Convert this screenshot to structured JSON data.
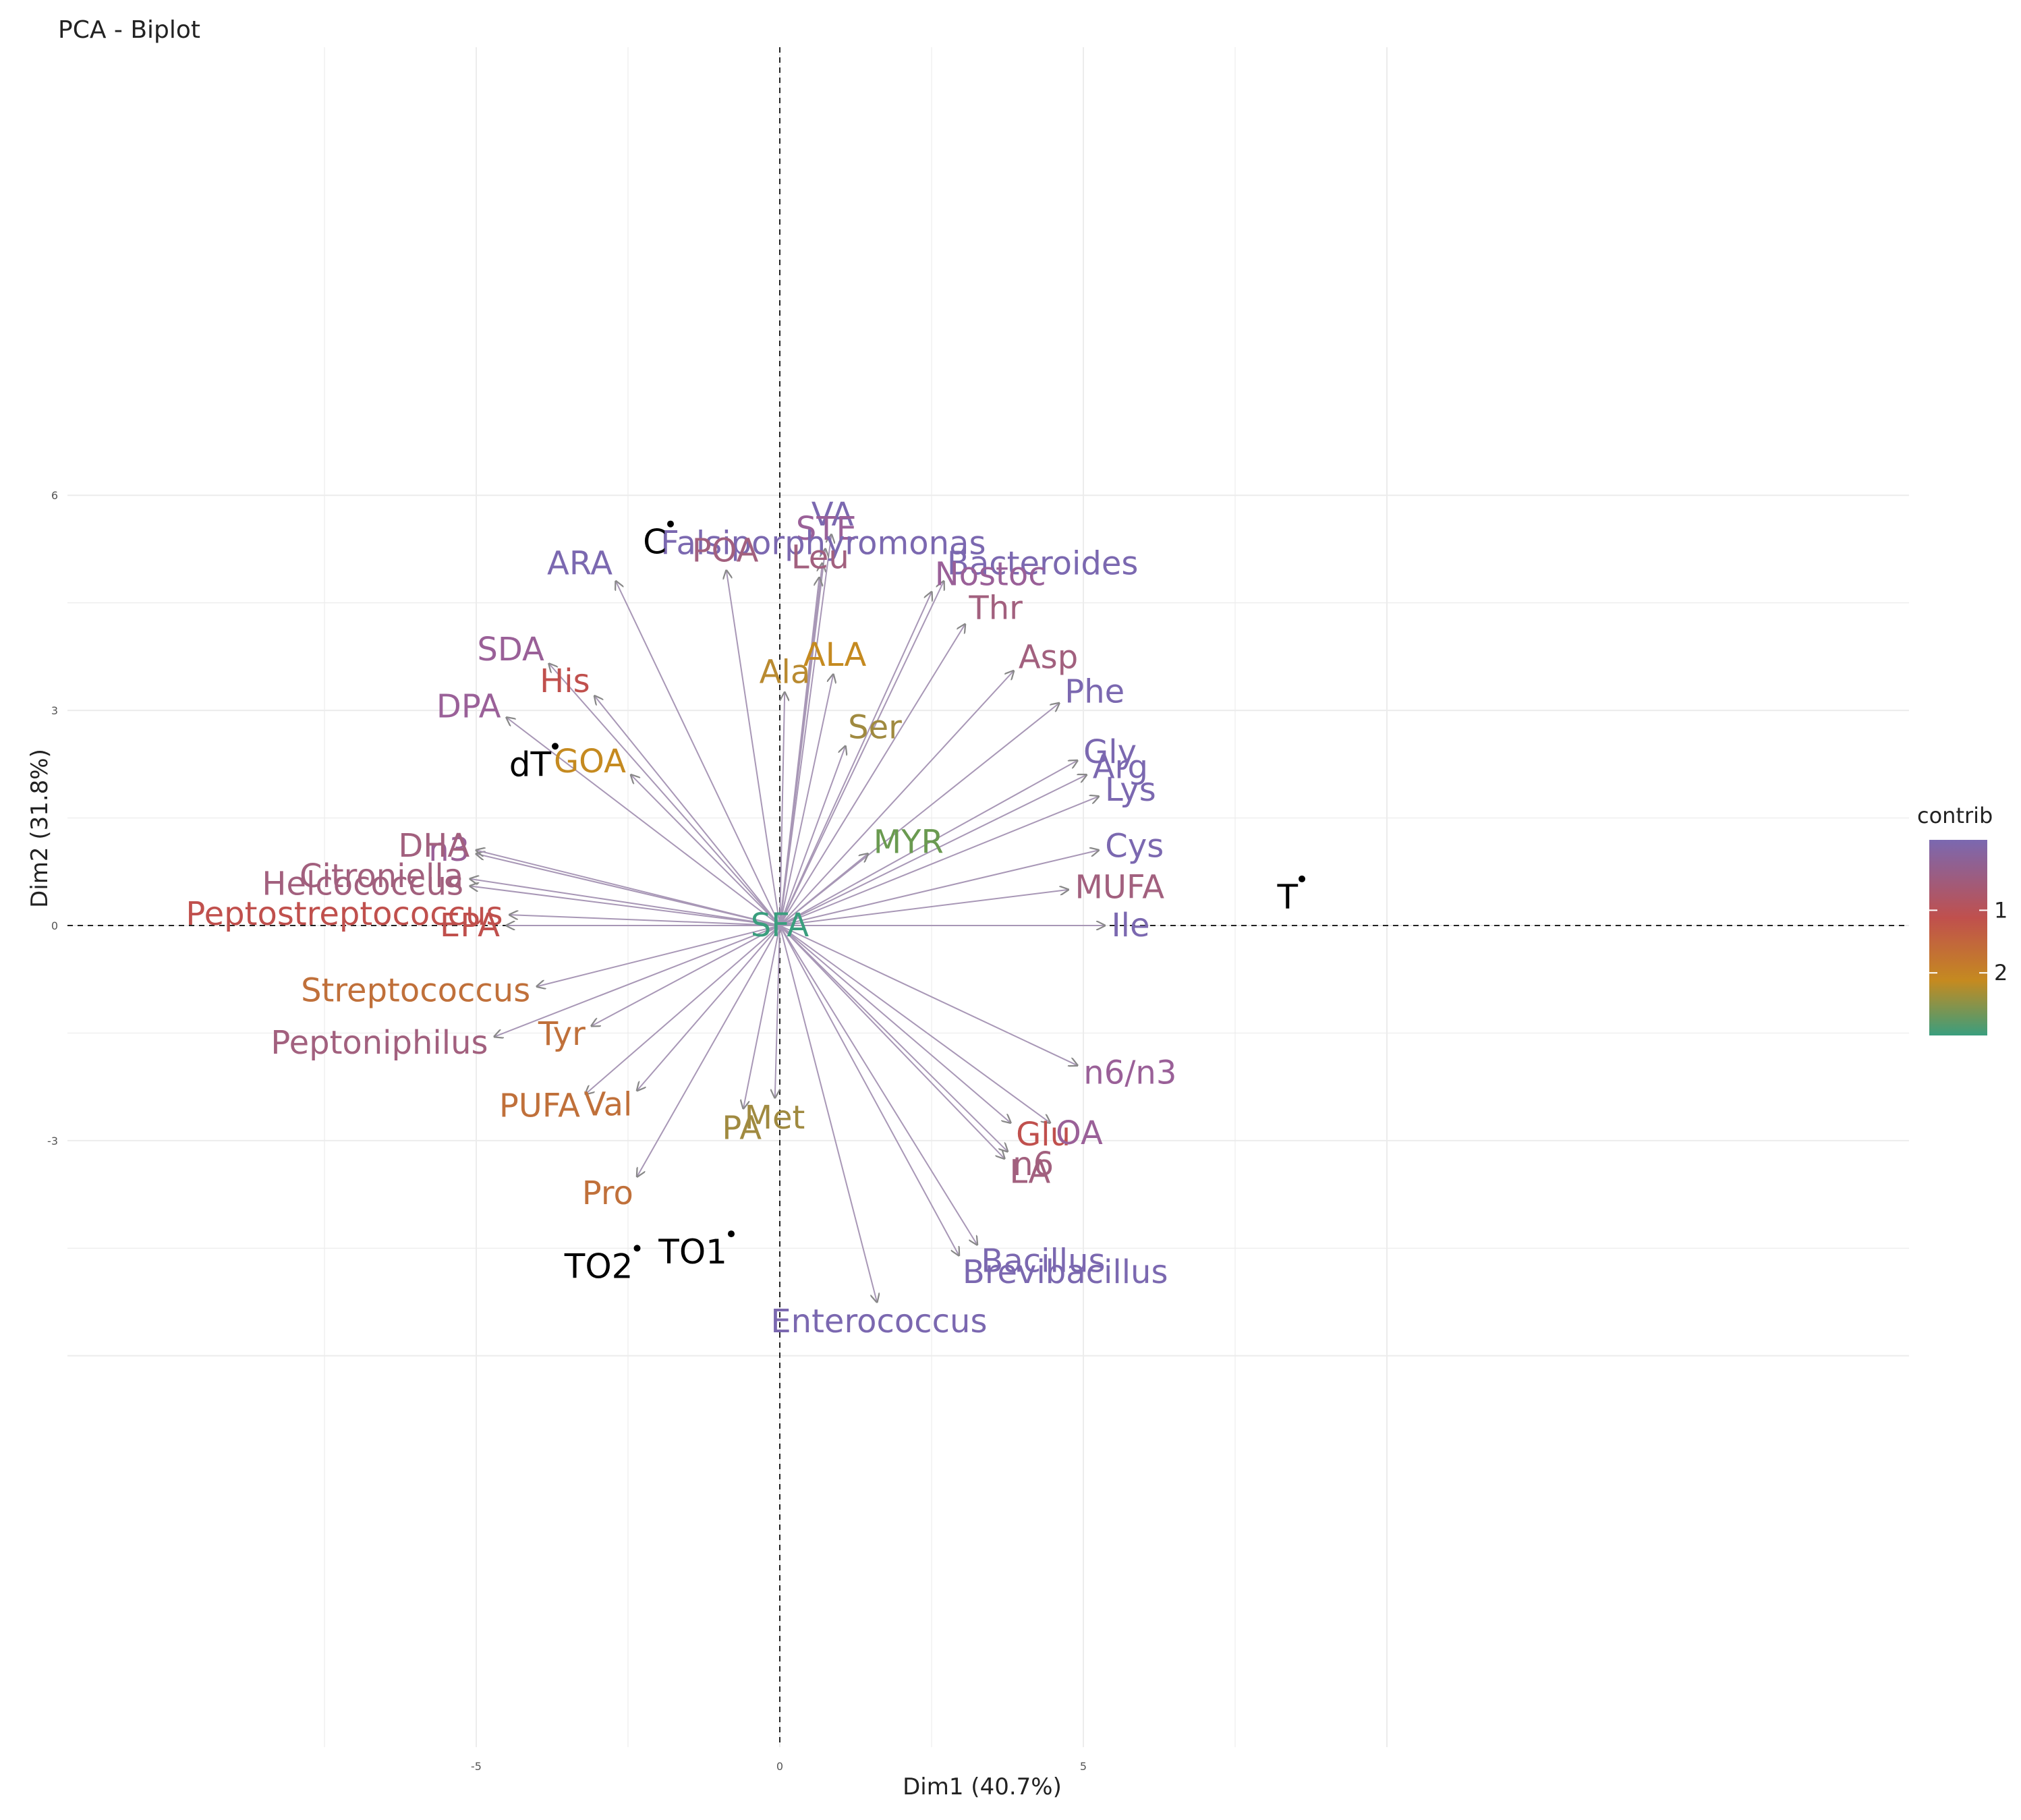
{
  "chart_data": {
    "type": "scatter",
    "subtype": "pca-biplot",
    "title": "PCA - Biplot",
    "xlabel": "Dim1 (40.7%)",
    "ylabel": "Dim2 (31.8%)",
    "xlim": [
      -5.85,
      9.3
    ],
    "ylim": [
      -6.0,
      6.2
    ],
    "x_ticks": [
      -5,
      0,
      5
    ],
    "y_ticks": [
      -3,
      0,
      3,
      6
    ],
    "grid": true,
    "reference_lines": {
      "x": 0,
      "y": 0,
      "style": "dashed"
    },
    "legend": {
      "title": "contrib",
      "position": "right",
      "ticks": [
        1,
        2
      ],
      "gradient": [
        "#7b68b0",
        "#c0504d",
        "#c58a20",
        "#3a9e7e"
      ]
    },
    "individuals": [
      {
        "label": "C",
        "x": -1.8,
        "y": 5.6
      },
      {
        "label": "dT",
        "x": -3.7,
        "y": 2.5
      },
      {
        "label": "T",
        "x": 8.6,
        "y": 0.65
      },
      {
        "label": "TO2",
        "x": -2.35,
        "y": -4.5
      },
      {
        "label": "TO1",
        "x": -0.8,
        "y": -4.3
      }
    ],
    "variables": [
      {
        "label": "VA",
        "x": 0.85,
        "y": 5.45,
        "color": "#7b68b0"
      },
      {
        "label": "STE",
        "x": 0.75,
        "y": 5.25,
        "color": "#9a6098"
      },
      {
        "label": "Falsiporphyromonas",
        "x": 0.7,
        "y": 5.05,
        "color": "#7b68b0"
      },
      {
        "label": "Leu",
        "x": 0.65,
        "y": 4.85,
        "color": "#a2607e"
      },
      {
        "label": "POA",
        "x": -0.88,
        "y": 4.95,
        "color": "#a2607e"
      },
      {
        "label": "ARA",
        "x": -2.7,
        "y": 4.8,
        "color": "#7b68b0"
      },
      {
        "label": "Bacteroides",
        "x": 2.7,
        "y": 4.8,
        "color": "#7b68b0"
      },
      {
        "label": "Nostoc",
        "x": 2.5,
        "y": 4.65,
        "color": "#9a6098"
      },
      {
        "label": "Thr",
        "x": 3.05,
        "y": 4.2,
        "color": "#a2607e"
      },
      {
        "label": "SDA",
        "x": -3.8,
        "y": 3.65,
        "color": "#9a6098"
      },
      {
        "label": "His",
        "x": -3.05,
        "y": 3.2,
        "color": "#c0504d"
      },
      {
        "label": "Ala",
        "x": 0.08,
        "y": 3.25,
        "color": "#b98a30"
      },
      {
        "label": "ALA",
        "x": 0.88,
        "y": 3.5,
        "color": "#c58a20"
      },
      {
        "label": "Asp",
        "x": 3.85,
        "y": 3.55,
        "color": "#a2607e"
      },
      {
        "label": "Phe",
        "x": 4.6,
        "y": 3.1,
        "color": "#7b68b0"
      },
      {
        "label": "DPA",
        "x": -4.5,
        "y": 2.9,
        "color": "#9a6098"
      },
      {
        "label": "Ser",
        "x": 1.08,
        "y": 2.5,
        "color": "#a08a40"
      },
      {
        "label": "Gly",
        "x": 4.9,
        "y": 2.3,
        "color": "#7b68b0"
      },
      {
        "label": "GOA",
        "x": -2.45,
        "y": 2.1,
        "color": "#c58a20"
      },
      {
        "label": "Arg",
        "x": 5.05,
        "y": 2.1,
        "color": "#7b68b0"
      },
      {
        "label": "Lys",
        "x": 5.25,
        "y": 1.8,
        "color": "#7b68b0"
      },
      {
        "label": "MYR",
        "x": 1.45,
        "y": 1.0,
        "color": "#6a9a50"
      },
      {
        "label": "n3",
        "x": -5.0,
        "y": 1.0,
        "color": "#9a6098"
      },
      {
        "label": "DHA",
        "x": -5.0,
        "y": 1.05,
        "color": "#a2607e"
      },
      {
        "label": "Cys",
        "x": 5.25,
        "y": 1.05,
        "color": "#7b68b0"
      },
      {
        "label": "Citroniella",
        "x": -5.1,
        "y": 0.65,
        "color": "#a2607e"
      },
      {
        "label": "Helcococcus",
        "x": -5.1,
        "y": 0.55,
        "color": "#a2607e"
      },
      {
        "label": "MUFA",
        "x": 4.75,
        "y": 0.5,
        "color": "#a2607e"
      },
      {
        "label": "SFA",
        "x": 0.0,
        "y": 0.0,
        "color": "#3a9e7e"
      },
      {
        "label": "Peptostreptococcus",
        "x": -4.45,
        "y": 0.15,
        "color": "#c0504d"
      },
      {
        "label": "EPA",
        "x": -4.5,
        "y": 0.0,
        "color": "#c0504d"
      },
      {
        "label": "Ile",
        "x": 5.35,
        "y": 0.0,
        "color": "#7b68b0"
      },
      {
        "label": "Streptococcus",
        "x": -4.0,
        "y": -0.85,
        "color": "#c0703a"
      },
      {
        "label": "Tyr",
        "x": -3.1,
        "y": -1.4,
        "color": "#c0703a"
      },
      {
        "label": "Peptoniphilus",
        "x": -4.7,
        "y": -1.55,
        "color": "#a2607e"
      },
      {
        "label": "n6/n3",
        "x": 4.9,
        "y": -1.95,
        "color": "#9a6098"
      },
      {
        "label": "Val",
        "x": -2.35,
        "y": -2.3,
        "color": "#c0703a"
      },
      {
        "label": "PUFA",
        "x": -3.2,
        "y": -2.35,
        "color": "#c0703a"
      },
      {
        "label": "Met",
        "x": -0.08,
        "y": -2.4,
        "color": "#a08a40"
      },
      {
        "label": "PA",
        "x": -0.6,
        "y": -2.55,
        "color": "#a08a40"
      },
      {
        "label": "Glu",
        "x": 3.8,
        "y": -2.75,
        "color": "#c0504d"
      },
      {
        "label": "OA",
        "x": 4.45,
        "y": -2.75,
        "color": "#9a6098"
      },
      {
        "label": "n6",
        "x": 3.75,
        "y": -3.15,
        "color": "#a2607e"
      },
      {
        "label": "LA",
        "x": 3.7,
        "y": -3.25,
        "color": "#a2607e"
      },
      {
        "label": "Pro",
        "x": -2.35,
        "y": -3.5,
        "color": "#c0703a"
      },
      {
        "label": "Bacillus",
        "x": 3.25,
        "y": -4.45,
        "color": "#7b68b0"
      },
      {
        "label": "Brevibacillus",
        "x": 2.95,
        "y": -4.6,
        "color": "#7b68b0"
      },
      {
        "label": "Enterococcus",
        "x": 1.6,
        "y": -5.25,
        "color": "#7b68b0"
      }
    ]
  }
}
